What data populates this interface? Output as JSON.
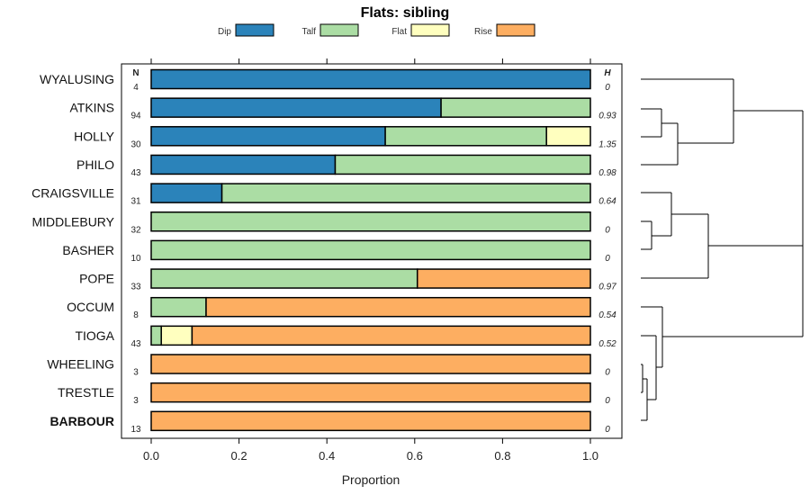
{
  "chart_data": {
    "type": "bar",
    "orientation": "horizontal",
    "stacked": true,
    "title": "Flats: sibling",
    "xlabel": "Proportion",
    "xlim": [
      0,
      1
    ],
    "xticks": [
      "0.0",
      "0.2",
      "0.4",
      "0.6",
      "0.8",
      "1.0"
    ],
    "legend": [
      {
        "name": "Dip",
        "color": "#2b83ba"
      },
      {
        "name": "Talf",
        "color": "#abdda4"
      },
      {
        "name": "Flat",
        "color": "#ffffbf"
      },
      {
        "name": "Rise",
        "color": "#fdae61"
      }
    ],
    "n_header": "N",
    "h_header": "H",
    "categories": [
      "WYALUSING",
      "ATKINS",
      "HOLLY",
      "PHILO",
      "CRAIGSVILLE",
      "MIDDLEBURY",
      "BASHER",
      "POPE",
      "OCCUM",
      "TIOGA",
      "WHEELING",
      "TRESTLE",
      "BARBOUR"
    ],
    "bold_categories": [
      "BARBOUR"
    ],
    "n": [
      "4",
      "94",
      "30",
      "43",
      "31",
      "32",
      "10",
      "33",
      "8",
      "43",
      "3",
      "3",
      "13"
    ],
    "h": [
      "0",
      "0.93",
      "1.35",
      "0.98",
      "0.64",
      "0",
      "0",
      "0.97",
      "0.54",
      "0.52",
      "0",
      "0",
      "0"
    ],
    "series": [
      {
        "name": "Dip",
        "values": [
          1.0,
          0.66,
          0.533,
          0.419,
          0.161,
          0,
          0,
          0,
          0,
          0,
          0,
          0,
          0
        ]
      },
      {
        "name": "Talf",
        "values": [
          0,
          0.34,
          0.367,
          0.581,
          0.839,
          1.0,
          1.0,
          0.606,
          0.125,
          0.023,
          0,
          0,
          0
        ]
      },
      {
        "name": "Flat",
        "values": [
          0,
          0,
          0.1,
          0,
          0,
          0,
          0,
          0,
          0,
          0.07,
          0,
          0,
          0
        ]
      },
      {
        "name": "Rise",
        "values": [
          0,
          0,
          0,
          0,
          0,
          0,
          0,
          0.394,
          0.875,
          0.907,
          1.0,
          1.0,
          1.0
        ]
      }
    ]
  }
}
